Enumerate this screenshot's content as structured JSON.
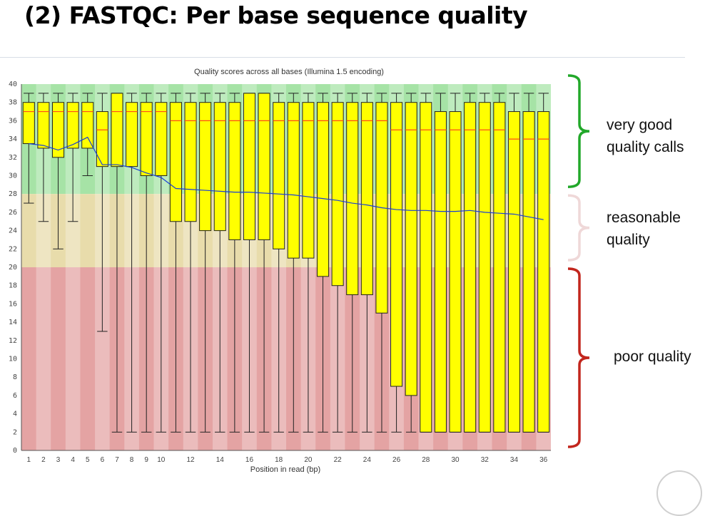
{
  "slide": {
    "title": "(2) FASTQC: Per base sequence quality"
  },
  "annotations": {
    "good": "very good\nquality calls",
    "reasonable": "reasonable\nquality",
    "poor": "poor quality"
  },
  "colors": {
    "good_bracket": "#22a82a",
    "reasonable_bracket": "#efd8d8",
    "poor_bracket": "#c2261d",
    "box_fill": "#ffff00",
    "median_line": "#ff4d1a",
    "mean_line": "#1a3fd6",
    "zone_good": "#a6e3a6",
    "zone_reasonable": "#e8dcab",
    "zone_poor": "#e4a3a3"
  },
  "chart_data": {
    "type": "box",
    "title": "Quality scores across all bases (Illumina 1.5 encoding)",
    "xlabel": "Position in read (bp)",
    "ylabel": "",
    "ylim": [
      0,
      40
    ],
    "yticks": [
      0,
      2,
      4,
      6,
      8,
      10,
      12,
      14,
      16,
      18,
      20,
      22,
      24,
      26,
      28,
      30,
      32,
      34,
      36,
      38,
      40
    ],
    "xtick_labels": [
      "1",
      "2",
      "3",
      "4",
      "5",
      "6",
      "7",
      "8",
      "9",
      "10",
      "12",
      "14",
      "16",
      "18",
      "20",
      "22",
      "24",
      "26",
      "28",
      "30",
      "32",
      "34",
      "36"
    ],
    "zones": [
      {
        "name": "good",
        "from": 28,
        "to": 40
      },
      {
        "name": "reasonable",
        "from": 20,
        "to": 28
      },
      {
        "name": "poor",
        "from": 0,
        "to": 20
      }
    ],
    "grid": false,
    "positions": [
      {
        "x": "1",
        "q1": 33.5,
        "q3": 38,
        "median": 37,
        "lower_whisker": 27,
        "upper_whisker": 39,
        "mean": 33.5
      },
      {
        "x": "2",
        "q1": 33,
        "q3": 38,
        "median": 37,
        "lower_whisker": 25,
        "upper_whisker": 39,
        "mean": 33.3
      },
      {
        "x": "3",
        "q1": 32,
        "q3": 38,
        "median": 37,
        "lower_whisker": 22,
        "upper_whisker": 39,
        "mean": 32.8
      },
      {
        "x": "4",
        "q1": 33,
        "q3": 38,
        "median": 37,
        "lower_whisker": 25,
        "upper_whisker": 39,
        "mean": 33.4
      },
      {
        "x": "5",
        "q1": 33,
        "q3": 38,
        "median": 37,
        "lower_whisker": 30,
        "upper_whisker": 39,
        "mean": 34.2
      },
      {
        "x": "6",
        "q1": 31,
        "q3": 37,
        "median": 35,
        "lower_whisker": 13,
        "upper_whisker": 39,
        "mean": 31.2
      },
      {
        "x": "7",
        "q1": 31,
        "q3": 39,
        "median": 37,
        "lower_whisker": 2,
        "upper_whisker": 39,
        "mean": 31.2
      },
      {
        "x": "8",
        "q1": 31,
        "q3": 38,
        "median": 37,
        "lower_whisker": 2,
        "upper_whisker": 39,
        "mean": 30.9
      },
      {
        "x": "9",
        "q1": 30,
        "q3": 38,
        "median": 37,
        "lower_whisker": 2,
        "upper_whisker": 39,
        "mean": 30.3
      },
      {
        "x": "10",
        "q1": 30,
        "q3": 38,
        "median": 37,
        "lower_whisker": 2,
        "upper_whisker": 39,
        "mean": 29.8
      },
      {
        "x": "11",
        "q1": 25,
        "q3": 38,
        "median": 36,
        "lower_whisker": 2,
        "upper_whisker": 39,
        "mean": 28.6
      },
      {
        "x": "12",
        "q1": 25,
        "q3": 38,
        "median": 36,
        "lower_whisker": 2,
        "upper_whisker": 39,
        "mean": 28.5
      },
      {
        "x": "13",
        "q1": 24,
        "q3": 38,
        "median": 36,
        "lower_whisker": 2,
        "upper_whisker": 39,
        "mean": 28.4
      },
      {
        "x": "14",
        "q1": 24,
        "q3": 38,
        "median": 36,
        "lower_whisker": 2,
        "upper_whisker": 39,
        "mean": 28.3
      },
      {
        "x": "15",
        "q1": 23,
        "q3": 38,
        "median": 36,
        "lower_whisker": 2,
        "upper_whisker": 39,
        "mean": 28.2
      },
      {
        "x": "16",
        "q1": 23,
        "q3": 39,
        "median": 36,
        "lower_whisker": 2,
        "upper_whisker": 39,
        "mean": 28.2
      },
      {
        "x": "17",
        "q1": 23,
        "q3": 39,
        "median": 36,
        "lower_whisker": 2,
        "upper_whisker": 39,
        "mean": 28.1
      },
      {
        "x": "18",
        "q1": 22,
        "q3": 38,
        "median": 36,
        "lower_whisker": 2,
        "upper_whisker": 39,
        "mean": 28
      },
      {
        "x": "19",
        "q1": 21,
        "q3": 38,
        "median": 36,
        "lower_whisker": 2,
        "upper_whisker": 39,
        "mean": 27.9
      },
      {
        "x": "20",
        "q1": 21,
        "q3": 38,
        "median": 36,
        "lower_whisker": 2,
        "upper_whisker": 39,
        "mean": 27.7
      },
      {
        "x": "21",
        "q1": 19,
        "q3": 38,
        "median": 36,
        "lower_whisker": 2,
        "upper_whisker": 39,
        "mean": 27.5
      },
      {
        "x": "22",
        "q1": 18,
        "q3": 38,
        "median": 36,
        "lower_whisker": 2,
        "upper_whisker": 39,
        "mean": 27.3
      },
      {
        "x": "23",
        "q1": 17,
        "q3": 38,
        "median": 36,
        "lower_whisker": 2,
        "upper_whisker": 39,
        "mean": 27
      },
      {
        "x": "24",
        "q1": 17,
        "q3": 38,
        "median": 36,
        "lower_whisker": 2,
        "upper_whisker": 39,
        "mean": 26.8
      },
      {
        "x": "25",
        "q1": 15,
        "q3": 38,
        "median": 36,
        "lower_whisker": 2,
        "upper_whisker": 39,
        "mean": 26.5
      },
      {
        "x": "26",
        "q1": 7,
        "q3": 38,
        "median": 35,
        "lower_whisker": 2,
        "upper_whisker": 39,
        "mean": 26.3
      },
      {
        "x": "27",
        "q1": 6,
        "q3": 38,
        "median": 35,
        "lower_whisker": 2,
        "upper_whisker": 39,
        "mean": 26.2
      },
      {
        "x": "28",
        "q1": 2,
        "q3": 38,
        "median": 35,
        "lower_whisker": 2,
        "upper_whisker": 39,
        "mean": 26.2
      },
      {
        "x": "29",
        "q1": 2,
        "q3": 37,
        "median": 35,
        "lower_whisker": 2,
        "upper_whisker": 39,
        "mean": 26.1
      },
      {
        "x": "30",
        "q1": 2,
        "q3": 37,
        "median": 35,
        "lower_whisker": 2,
        "upper_whisker": 39,
        "mean": 26.1
      },
      {
        "x": "31",
        "q1": 2,
        "q3": 38,
        "median": 35,
        "lower_whisker": 2,
        "upper_whisker": 39,
        "mean": 26.2
      },
      {
        "x": "32",
        "q1": 2,
        "q3": 38,
        "median": 35,
        "lower_whisker": 2,
        "upper_whisker": 39,
        "mean": 26
      },
      {
        "x": "33",
        "q1": 2,
        "q3": 38,
        "median": 35,
        "lower_whisker": 2,
        "upper_whisker": 39,
        "mean": 25.9
      },
      {
        "x": "34",
        "q1": 2,
        "q3": 37,
        "median": 34,
        "lower_whisker": 2,
        "upper_whisker": 39,
        "mean": 25.8
      },
      {
        "x": "35",
        "q1": 2,
        "q3": 37,
        "median": 34,
        "lower_whisker": 2,
        "upper_whisker": 39,
        "mean": 25.5
      },
      {
        "x": "36",
        "q1": 2,
        "q3": 37,
        "median": 34,
        "lower_whisker": 2,
        "upper_whisker": 39,
        "mean": 25.2
      }
    ]
  }
}
